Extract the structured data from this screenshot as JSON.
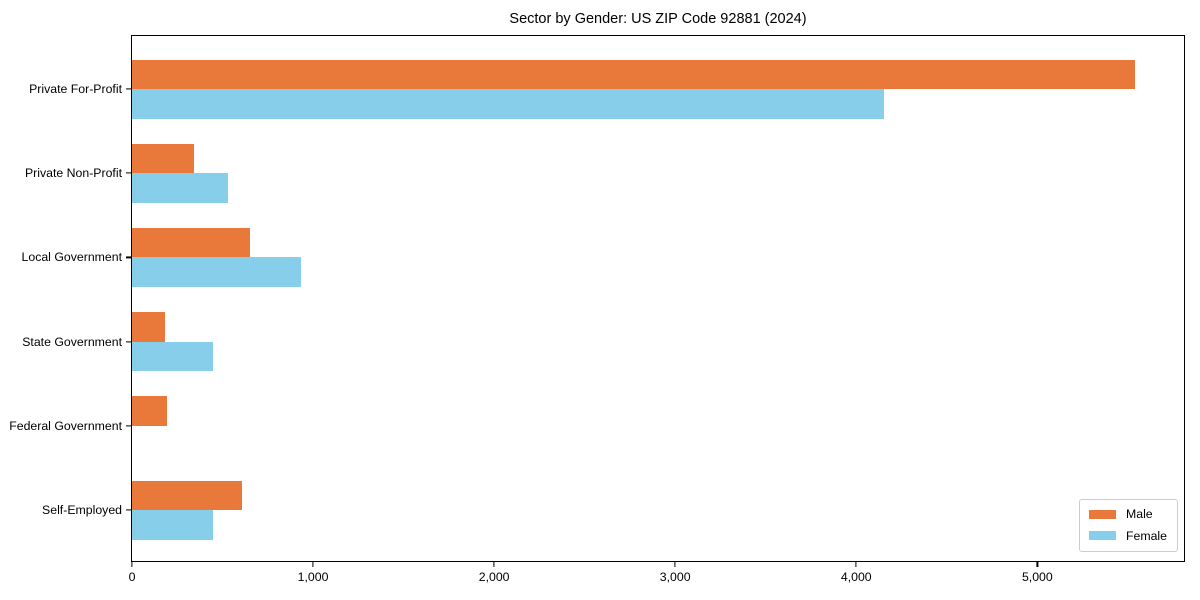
{
  "chart_data": {
    "type": "bar",
    "orientation": "horizontal",
    "title": "Sector by Gender: US ZIP Code 92881 (2024)",
    "categories": [
      "Private For-Profit",
      "Private Non-Profit",
      "Local Government",
      "State Government",
      "Federal Government",
      "Self-Employed"
    ],
    "series": [
      {
        "name": "Male",
        "color": "#E8793B",
        "values": [
          5540,
          340,
          650,
          185,
          195,
          605
        ]
      },
      {
        "name": "Female",
        "color": "#87CEEB",
        "values": [
          4155,
          530,
          935,
          445,
          0,
          450
        ]
      }
    ],
    "xlabel": "",
    "ylabel": "",
    "xlim": [
      0,
      5810
    ],
    "x_ticks": [
      0,
      1000,
      2000,
      3000,
      4000,
      5000
    ],
    "x_tick_labels": [
      "0",
      "1,000",
      "2,000",
      "3,000",
      "4,000",
      "5,000"
    ],
    "grid": false,
    "legend": {
      "position": "lower right",
      "entries": [
        "Male",
        "Female"
      ]
    }
  },
  "colors": {
    "male": "#E8793B",
    "female": "#87CEEB",
    "spine": "#000000",
    "text": "#000000",
    "legend_border": "#CCCCCC",
    "background": "#FFFFFF"
  }
}
